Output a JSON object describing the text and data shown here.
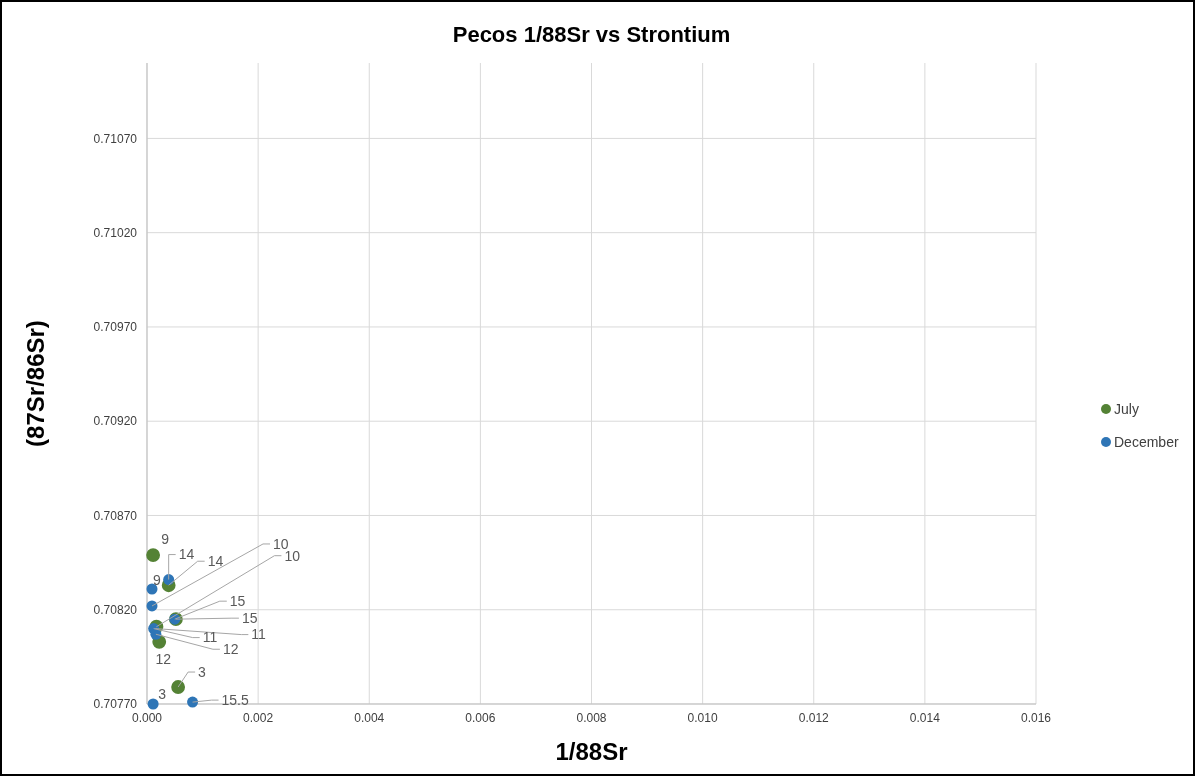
{
  "chart_data": {
    "type": "scatter",
    "title": "Pecos 1/88Sr vs Strontium",
    "xlabel": "1/88Sr",
    "ylabel": "(87Sr/86Sr)",
    "xlim": [
      0,
      0.016
    ],
    "xticks": [
      {
        "value": 0,
        "label": "0.000"
      },
      {
        "value": 0.002,
        "label": "0.002"
      },
      {
        "value": 0.004,
        "label": "0.004"
      },
      {
        "value": 0.006,
        "label": "0.006"
      },
      {
        "value": 0.008,
        "label": "0.008"
      },
      {
        "value": 0.01,
        "label": "0.010"
      },
      {
        "value": 0.012,
        "label": "0.012"
      },
      {
        "value": 0.014,
        "label": "0.014"
      },
      {
        "value": 0.016,
        "label": "0.016"
      }
    ],
    "ylim": [
      0.7077,
      0.7111
    ],
    "yticks": [
      {
        "value": 0.7077,
        "label": "0.70770"
      },
      {
        "value": 0.7082,
        "label": "0.70820"
      },
      {
        "value": 0.7087,
        "label": "0.70870"
      },
      {
        "value": 0.7092,
        "label": "0.70920"
      },
      {
        "value": 0.7097,
        "label": "0.70970"
      },
      {
        "value": 0.7102,
        "label": "0.71020"
      },
      {
        "value": 0.7107,
        "label": "0.71070"
      }
    ],
    "grid": true,
    "legend": "right",
    "marker": "circle",
    "series": [
      {
        "name": "July",
        "color": "#548235",
        "x": [
          0.00011,
          0.00039,
          0.00017,
          0.00052,
          null,
          0.00022,
          0.00056
        ],
        "values": [
          0.70849,
          0.70833,
          0.70811,
          0.70815,
          null,
          0.70803,
          0.70779
        ]
      },
      {
        "name": "December",
        "color": "#2e75b6",
        "x": [
          9e-05,
          0.00039,
          9e-05,
          0.0005,
          0.00012,
          0.00016,
          0.00011,
          0.00082
        ],
        "values": [
          0.70831,
          0.70836,
          0.70822,
          0.70815,
          0.7081,
          0.70807,
          0.7077,
          0.70771
        ]
      }
    ],
    "annotations": [
      {
        "text": "9",
        "x": 0.00011,
        "y": 0.70849
      },
      {
        "text": "14",
        "x": 0.00039,
        "y": 0.70833
      },
      {
        "text": "10",
        "x": 0.00017,
        "y": 0.70811
      },
      {
        "text": "15",
        "x": 0.00052,
        "y": 0.70815
      },
      {
        "text": "11",
        "x": 0.00015,
        "y": 0.7081
      },
      {
        "text": "12",
        "x": 0.00022,
        "y": 0.70803
      },
      {
        "text": "3",
        "x": 0.00011,
        "y": 0.7077
      },
      {
        "text": "9",
        "x": 9e-05,
        "y": 0.70831
      },
      {
        "text": "14",
        "x": 0.00039,
        "y": 0.70836
      },
      {
        "text": "10",
        "x": 9e-05,
        "y": 0.70822
      },
      {
        "text": "15",
        "x": 0.0005,
        "y": 0.70815
      },
      {
        "text": "11",
        "x": 0.00012,
        "y": 0.7081
      },
      {
        "text": "12",
        "x": 0.00016,
        "y": 0.70807
      },
      {
        "text": "3",
        "x": 0.00056,
        "y": 0.70779
      },
      {
        "text": "15.5",
        "x": 0.00082,
        "y": 0.70771
      }
    ]
  }
}
